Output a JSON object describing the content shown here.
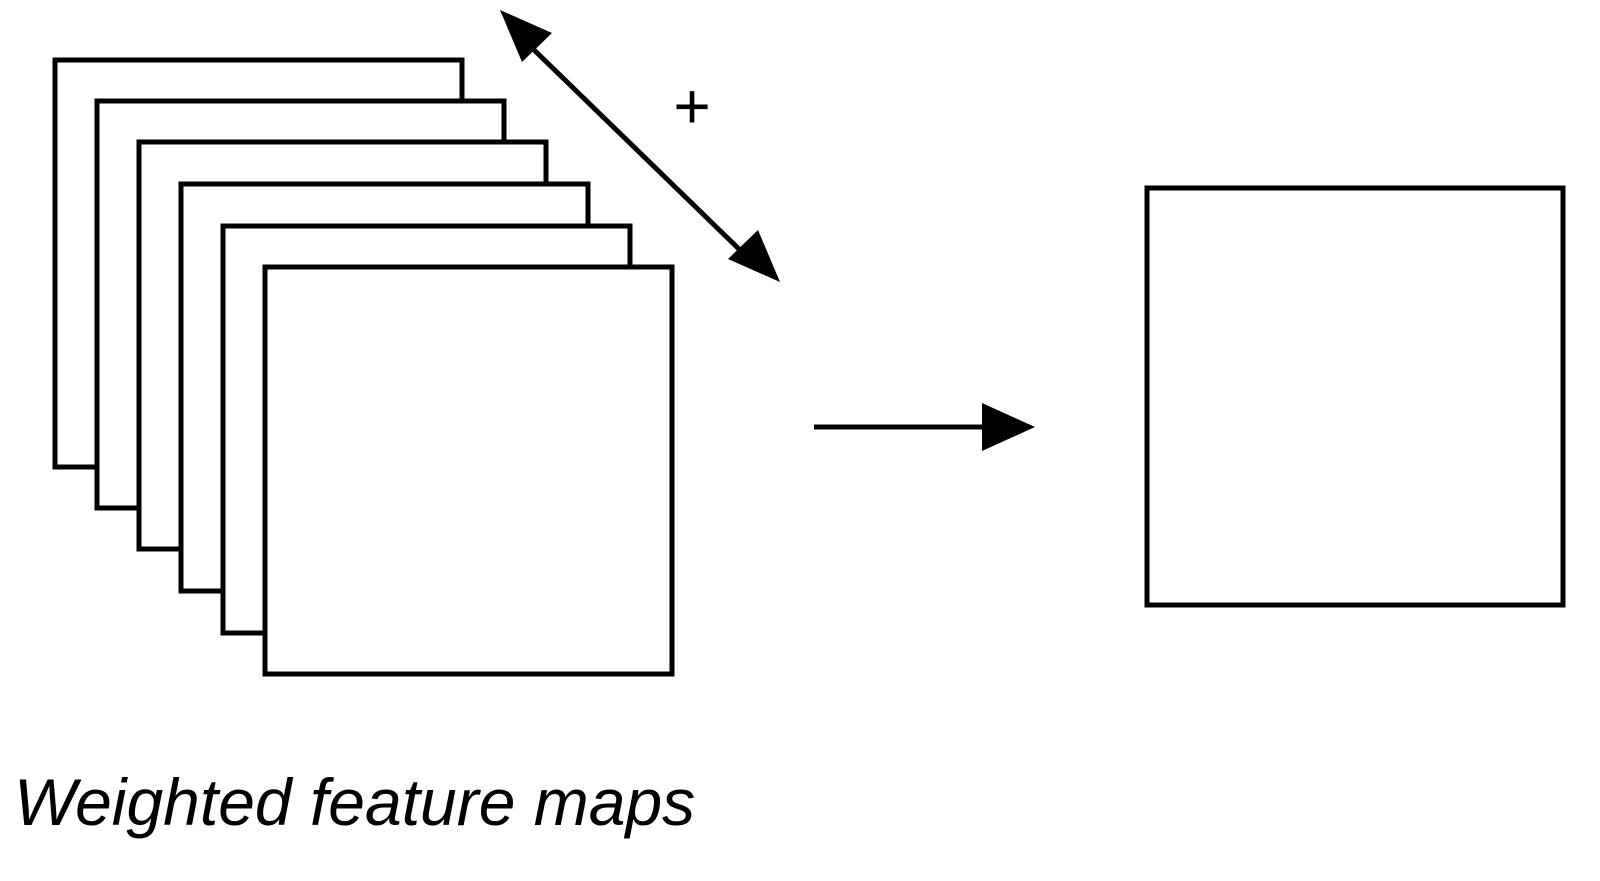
{
  "diagram": {
    "caption": "Weighted feature maps",
    "sum_symbol": "+",
    "stack_count": 6
  }
}
